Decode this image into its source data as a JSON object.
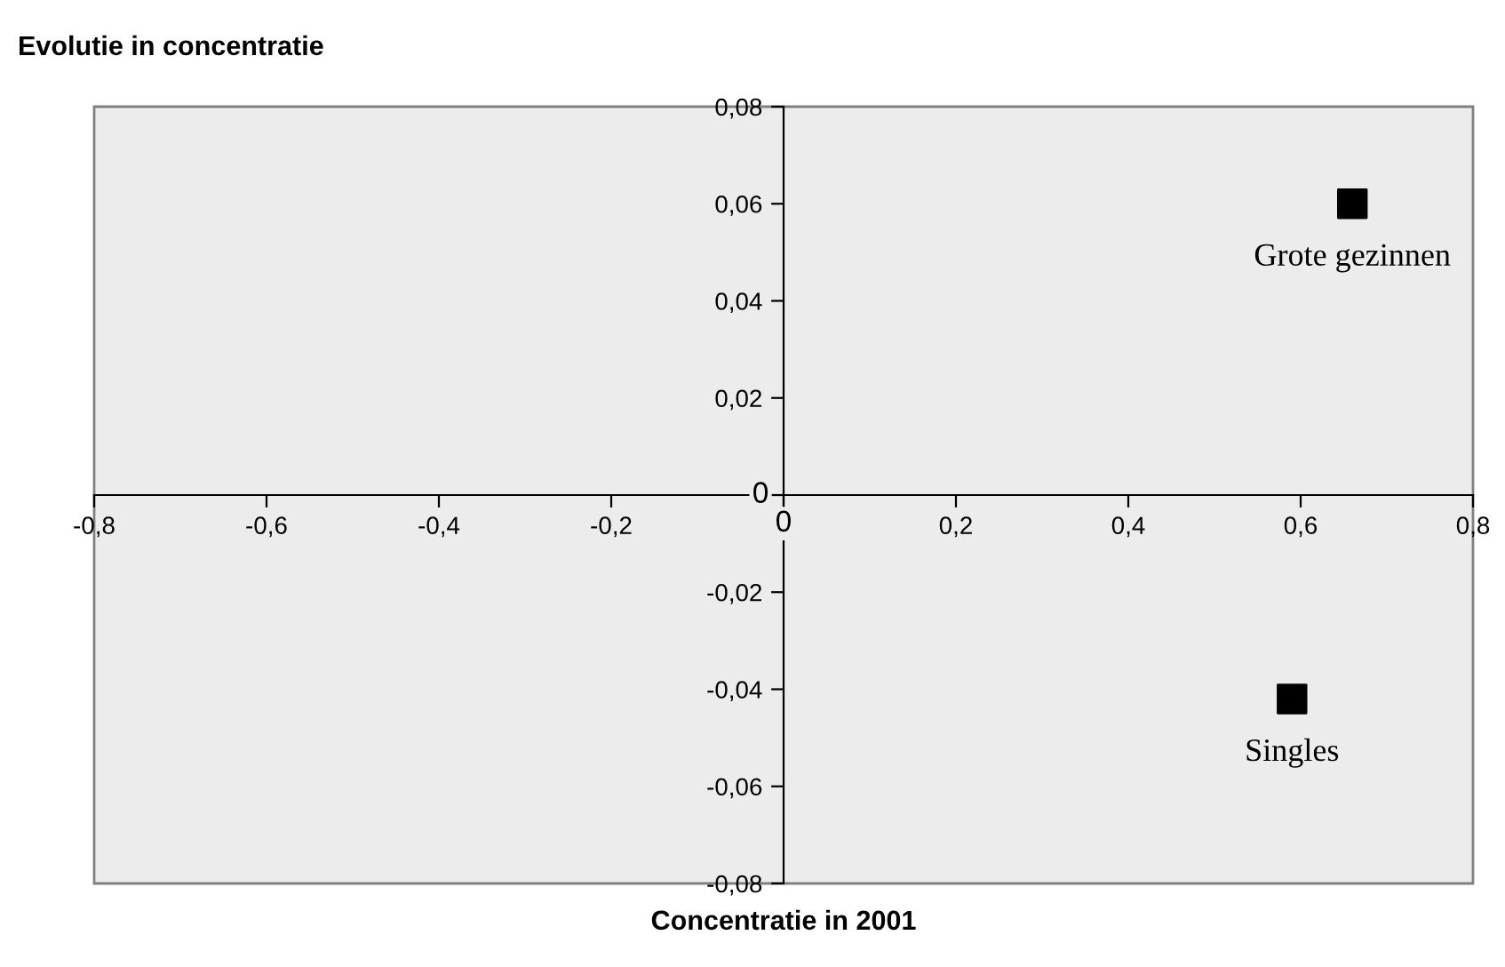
{
  "chart_data": {
    "type": "scatter",
    "title": "Evolutie in concentratie",
    "xlabel": "Concentratie in 2001",
    "series": [
      {
        "color": "#000000",
        "x": [
          0.66,
          0.59
        ],
        "values": [
          0.06,
          -0.042
        ]
      }
    ],
    "marker": "square",
    "annotations": [
      {
        "text": "Grote gezinnen",
        "x": 0.66,
        "y": 0.06
      },
      {
        "text": "Singles",
        "x": 0.59,
        "y": -0.042
      }
    ],
    "xlim": [
      -0.8,
      0.8
    ],
    "ylim": [
      -0.08,
      0.08
    ],
    "xticks": [
      {
        "value": -0.8,
        "label": "-0,8"
      },
      {
        "value": -0.6,
        "label": "-0,6"
      },
      {
        "value": -0.4,
        "label": "-0,4"
      },
      {
        "value": -0.2,
        "label": "-0,2"
      },
      {
        "value": 0,
        "label": "0"
      },
      {
        "value": 0.2,
        "label": "0,2"
      },
      {
        "value": 0.4,
        "label": "0,4"
      },
      {
        "value": 0.6,
        "label": "0,6"
      },
      {
        "value": 0.8,
        "label": "0,8"
      }
    ],
    "yticks": [
      {
        "value": -0.08,
        "label": "-0,08"
      },
      {
        "value": -0.06,
        "label": "-0,06"
      },
      {
        "value": -0.04,
        "label": "-0,04"
      },
      {
        "value": -0.02,
        "label": "-0,02"
      },
      {
        "value": 0,
        "label": "0"
      },
      {
        "value": 0.02,
        "label": "0,02"
      },
      {
        "value": 0.04,
        "label": "0,04"
      },
      {
        "value": 0.06,
        "label": "0,06"
      },
      {
        "value": 0.08,
        "label": "0,08"
      }
    ],
    "grid": false
  }
}
